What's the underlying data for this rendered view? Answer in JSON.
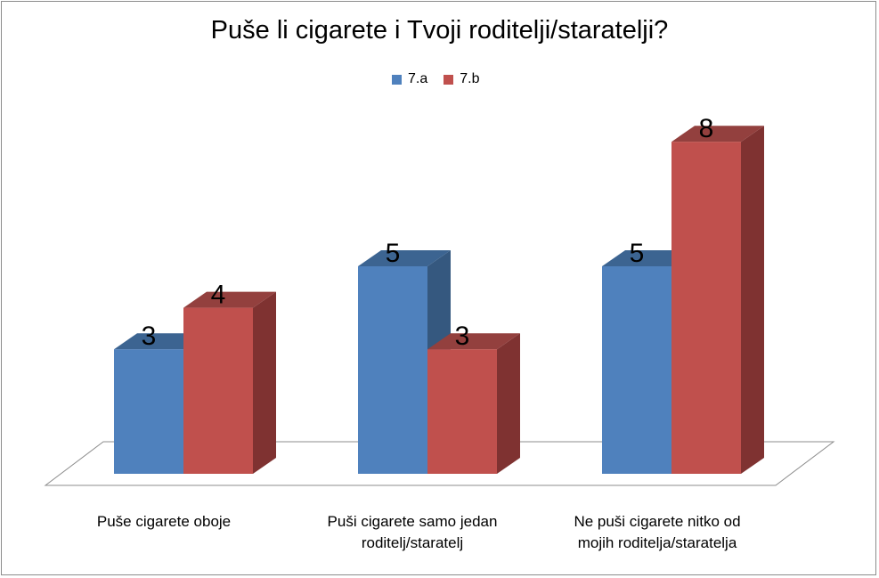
{
  "chart_data": {
    "type": "bar",
    "title": "Puše li cigarete i Tvoji roditelji/staratelji?",
    "categories": [
      [
        "Puše cigarete oboje"
      ],
      [
        "Puši cigarete samo jedan",
        "roditelj/staratelj"
      ],
      [
        "Ne puši cigarete nitko od",
        "mojih roditelja/staratelja"
      ]
    ],
    "series": [
      {
        "name": "7.a",
        "values": [
          3,
          5,
          5
        ],
        "color": "#4f81bd",
        "side_color": "#35587f",
        "top_color": "#3c6491"
      },
      {
        "name": "7.b",
        "values": [
          4,
          3,
          8
        ],
        "color": "#c0504d",
        "side_color": "#7f3231",
        "top_color": "#93403e"
      }
    ],
    "legend_position": "top",
    "three_d": true,
    "grid": false,
    "ylim": [
      0,
      8
    ]
  }
}
